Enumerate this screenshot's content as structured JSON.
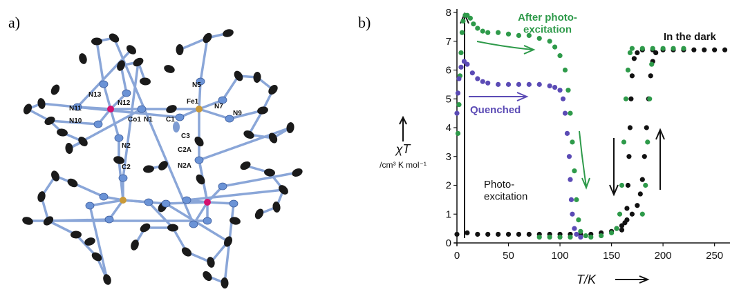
{
  "panel_a": {
    "label": "a)",
    "atoms": [
      "N13",
      "N12",
      "N11",
      "N10",
      "Co1",
      "N1",
      "C1",
      "Fe1",
      "N5",
      "N7",
      "N9",
      "C3",
      "N2",
      "C2",
      "C2A",
      "N2A"
    ]
  },
  "chart_data": {
    "type": "scatter",
    "label": "b)",
    "xlabel": "T/K",
    "ylabel": "χT",
    "ylabel_units": "/cm³ K mol⁻¹",
    "annotation": "Photo-excitation",
    "xlim": [
      0,
      265
    ],
    "ylim": [
      0,
      8
    ],
    "xticks": [
      0,
      50,
      100,
      150,
      200,
      250
    ],
    "yticks": [
      0,
      1,
      2,
      3,
      4,
      5,
      6,
      7,
      8
    ],
    "series": [
      {
        "name": "In the dark",
        "color": "#111111",
        "x": [
          0,
          10,
          20,
          30,
          40,
          50,
          60,
          70,
          80,
          90,
          100,
          110,
          120,
          130,
          140,
          150,
          155,
          160,
          165,
          170,
          175,
          178,
          180,
          182,
          184,
          186,
          188,
          190,
          193,
          160,
          163,
          165,
          166,
          167,
          168,
          169,
          170,
          172,
          175,
          180,
          190,
          200,
          210,
          220,
          230,
          240,
          250,
          260
        ],
        "values": [
          0.3,
          0.35,
          0.3,
          0.3,
          0.3,
          0.3,
          0.3,
          0.3,
          0.3,
          0.3,
          0.3,
          0.3,
          0.3,
          0.3,
          0.35,
          0.4,
          0.5,
          0.6,
          0.8,
          1.0,
          1.3,
          1.7,
          2.2,
          3.0,
          4.0,
          5.0,
          5.8,
          6.3,
          6.6,
          0.45,
          0.7,
          1.2,
          2.0,
          3.0,
          4.0,
          5.0,
          5.8,
          6.4,
          6.6,
          6.7,
          6.7,
          6.7,
          6.7,
          6.7,
          6.7,
          6.7,
          6.7,
          6.7
        ]
      },
      {
        "name": "After photo-excitation",
        "color": "#2e9a4a",
        "x": [
          1,
          2,
          3,
          4,
          5,
          6,
          8,
          10,
          13,
          16,
          20,
          25,
          30,
          40,
          50,
          60,
          70,
          80,
          90,
          95,
          100,
          105,
          108,
          110,
          112,
          114,
          116,
          118,
          120,
          125,
          80,
          90,
          100,
          110,
          130,
          140,
          150,
          155,
          158,
          160,
          162,
          164,
          166,
          168,
          180,
          183,
          185,
          187,
          189,
          170,
          180,
          190,
          200,
          210,
          220
        ],
        "values": [
          3.8,
          4.8,
          5.8,
          6.6,
          7.3,
          7.7,
          7.9,
          7.9,
          7.8,
          7.6,
          7.45,
          7.35,
          7.3,
          7.3,
          7.25,
          7.2,
          7.2,
          7.1,
          7.0,
          6.8,
          6.5,
          6.0,
          5.3,
          4.5,
          3.5,
          2.5,
          1.5,
          0.8,
          0.4,
          0.25,
          0.2,
          0.2,
          0.2,
          0.2,
          0.2,
          0.25,
          0.35,
          0.5,
          1.0,
          2.0,
          3.5,
          5.0,
          6.0,
          6.6,
          1.0,
          2.0,
          3.5,
          5.0,
          6.2,
          6.75,
          6.75,
          6.75,
          6.75,
          6.75,
          6.75
        ]
      },
      {
        "name": "Quenched",
        "color": "#5b4bb5",
        "x": [
          0,
          1,
          2,
          4,
          7,
          10,
          15,
          20,
          25,
          30,
          40,
          50,
          60,
          70,
          80,
          90,
          95,
          100,
          103,
          105,
          107,
          109,
          110,
          111,
          112,
          114,
          116,
          120
        ],
        "values": [
          4.5,
          5.2,
          5.7,
          6.1,
          6.3,
          6.2,
          5.9,
          5.7,
          5.6,
          5.55,
          5.5,
          5.5,
          5.5,
          5.5,
          5.5,
          5.45,
          5.4,
          5.3,
          5.0,
          4.5,
          3.8,
          3.0,
          2.2,
          1.5,
          1.0,
          0.5,
          0.3,
          0.2
        ]
      }
    ]
  }
}
